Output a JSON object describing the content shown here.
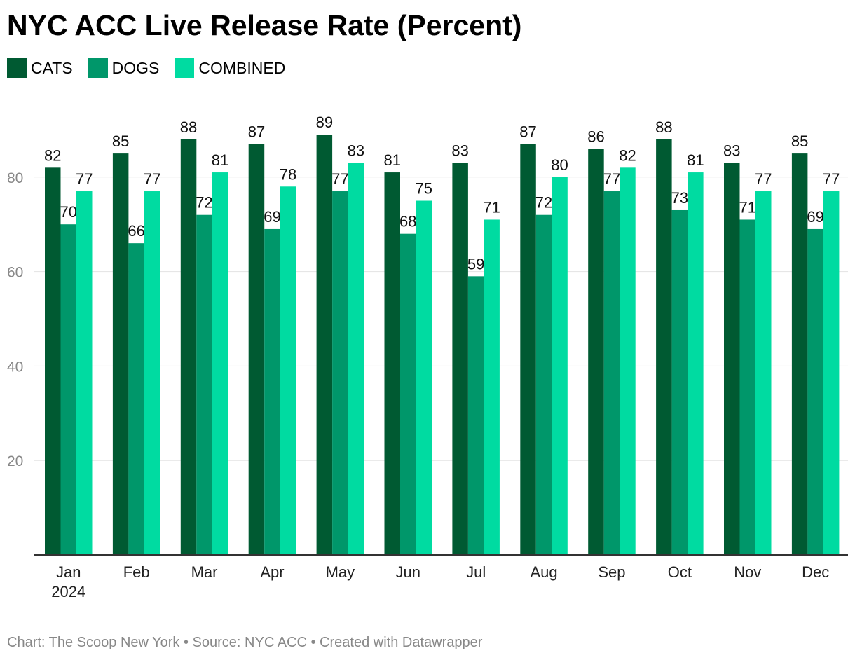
{
  "chart_data": {
    "type": "bar",
    "title": "NYC ACC Live Release Rate (Percent)",
    "xlabel": "",
    "ylabel": "",
    "categories": [
      "Jan",
      "Feb",
      "Mar",
      "Apr",
      "May",
      "Jun",
      "Jul",
      "Aug",
      "Sep",
      "Oct",
      "Nov",
      "Dec"
    ],
    "category_sublabels": [
      "2024",
      "",
      "",
      "",
      "",
      "",
      "",
      "",
      "",
      "",
      "",
      ""
    ],
    "series": [
      {
        "name": "CATS",
        "color": "#005A32",
        "values": [
          82,
          85,
          88,
          87,
          89,
          81,
          83,
          87,
          86,
          88,
          83,
          85
        ]
      },
      {
        "name": "DOGS",
        "color": "#00976A",
        "values": [
          70,
          66,
          72,
          69,
          77,
          68,
          59,
          72,
          77,
          73,
          71,
          69
        ]
      },
      {
        "name": "COMBINED",
        "color": "#00DBA1",
        "values": [
          77,
          77,
          81,
          78,
          83,
          75,
          71,
          80,
          82,
          81,
          77,
          77
        ]
      }
    ],
    "ylim": [
      0,
      95
    ],
    "yticks": [
      20,
      40,
      60,
      80
    ],
    "grid": true,
    "legend_position": "top-left",
    "data_labels": true
  },
  "footer": "Chart: The Scoop New York • Source: NYC ACC • Created with Datawrapper"
}
